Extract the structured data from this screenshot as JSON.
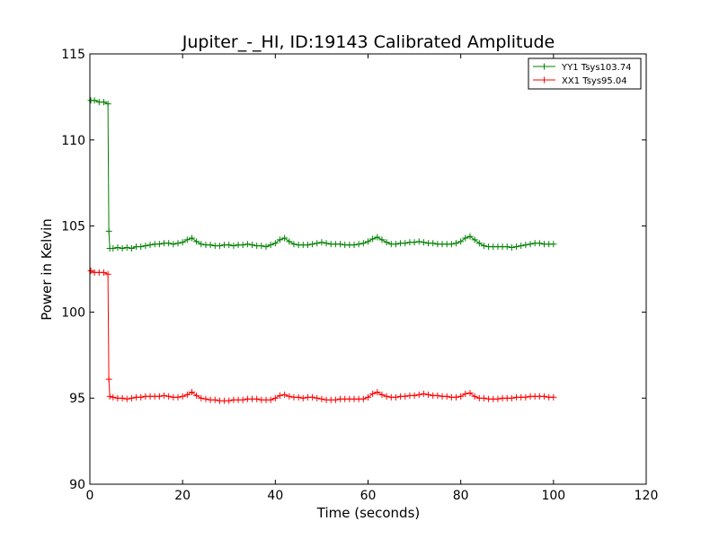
{
  "chart_data": {
    "type": "line",
    "title": "Jupiter_-_HI, ID:19143 Calibrated Amplitude",
    "xlabel": "Time (seconds)",
    "ylabel": "Power in Kelvin",
    "xlim": [
      0,
      120
    ],
    "ylim": [
      90,
      115
    ],
    "xticks": [
      0,
      20,
      40,
      60,
      80,
      100,
      120
    ],
    "yticks": [
      90,
      95,
      100,
      105,
      110,
      115
    ],
    "grid": false,
    "legend_position": "top-right",
    "marker": "plus",
    "series": [
      {
        "name": "YY1 Tsys103.74",
        "color": "#008000",
        "x": [
          0.2,
          1,
          2,
          3,
          3.9,
          4.1,
          4.3,
          5,
          6,
          7,
          8,
          9,
          10,
          11,
          12,
          13,
          14,
          15,
          16,
          17,
          18,
          19,
          20,
          21,
          22,
          23,
          24,
          25,
          26,
          27,
          28,
          29,
          30,
          31,
          32,
          33,
          34,
          35,
          36,
          37,
          38,
          39,
          40,
          41,
          42,
          43,
          44,
          45,
          46,
          47,
          48,
          49,
          50,
          51,
          52,
          53,
          54,
          55,
          56,
          57,
          58,
          59,
          60,
          61,
          62,
          63,
          64,
          65,
          66,
          67,
          68,
          69,
          70,
          71,
          72,
          73,
          74,
          75,
          76,
          77,
          78,
          79,
          80,
          81,
          82,
          83,
          84,
          85,
          86,
          87,
          88,
          89,
          90,
          91,
          92,
          93,
          94,
          95,
          96,
          97,
          98,
          99,
          100
        ],
        "values": [
          112.3,
          112.3,
          112.2,
          112.2,
          112.1,
          104.7,
          103.7,
          103.7,
          103.75,
          103.7,
          103.75,
          103.7,
          103.8,
          103.8,
          103.85,
          103.9,
          103.95,
          103.95,
          104.0,
          104.0,
          103.95,
          104.0,
          104.05,
          104.2,
          104.3,
          104.1,
          103.95,
          103.9,
          103.9,
          103.85,
          103.85,
          103.9,
          103.9,
          103.85,
          103.9,
          103.9,
          103.95,
          103.9,
          103.85,
          103.85,
          103.8,
          103.9,
          104.0,
          104.2,
          104.3,
          104.1,
          103.95,
          103.9,
          103.9,
          103.9,
          103.95,
          104.0,
          104.05,
          104.0,
          103.95,
          103.95,
          103.95,
          103.9,
          103.9,
          103.9,
          103.95,
          104.0,
          104.1,
          104.25,
          104.35,
          104.2,
          104.05,
          103.95,
          103.95,
          104.0,
          104.0,
          104.05,
          104.05,
          104.1,
          104.05,
          104.0,
          104.0,
          103.95,
          103.95,
          103.95,
          103.95,
          104.0,
          104.1,
          104.3,
          104.4,
          104.2,
          104.0,
          103.85,
          103.8,
          103.8,
          103.8,
          103.8,
          103.8,
          103.75,
          103.8,
          103.85,
          103.9,
          103.95,
          104.0,
          104.0,
          103.95,
          103.95,
          103.95
        ]
      },
      {
        "name": "XX1 Tsys95.04",
        "color": "#ff0000",
        "x": [
          0.2,
          1,
          2,
          3,
          3.9,
          4.1,
          4.3,
          5,
          6,
          7,
          8,
          9,
          10,
          11,
          12,
          13,
          14,
          15,
          16,
          17,
          18,
          19,
          20,
          21,
          22,
          23,
          24,
          25,
          26,
          27,
          28,
          29,
          30,
          31,
          32,
          33,
          34,
          35,
          36,
          37,
          38,
          39,
          40,
          41,
          42,
          43,
          44,
          45,
          46,
          47,
          48,
          49,
          50,
          51,
          52,
          53,
          54,
          55,
          56,
          57,
          58,
          59,
          60,
          61,
          62,
          63,
          64,
          65,
          66,
          67,
          68,
          69,
          70,
          71,
          72,
          73,
          74,
          75,
          76,
          77,
          78,
          79,
          80,
          81,
          82,
          83,
          84,
          85,
          86,
          87,
          88,
          89,
          90,
          91,
          92,
          93,
          94,
          95,
          96,
          97,
          98,
          99,
          100
        ],
        "values": [
          102.4,
          102.3,
          102.3,
          102.3,
          102.2,
          96.1,
          95.1,
          95.05,
          95.0,
          95.0,
          94.95,
          95.0,
          95.05,
          95.05,
          95.1,
          95.1,
          95.1,
          95.1,
          95.15,
          95.1,
          95.05,
          95.05,
          95.1,
          95.2,
          95.35,
          95.15,
          95.0,
          94.95,
          94.9,
          94.9,
          94.85,
          94.85,
          94.85,
          94.9,
          94.9,
          94.9,
          94.95,
          94.95,
          94.95,
          94.9,
          94.9,
          94.9,
          95.0,
          95.15,
          95.2,
          95.1,
          95.05,
          95.05,
          95.0,
          95.05,
          95.05,
          95.0,
          94.95,
          94.9,
          94.9,
          94.9,
          94.95,
          94.95,
          94.95,
          94.95,
          94.95,
          94.95,
          95.05,
          95.25,
          95.35,
          95.2,
          95.1,
          95.05,
          95.05,
          95.1,
          95.1,
          95.15,
          95.15,
          95.2,
          95.25,
          95.2,
          95.15,
          95.15,
          95.1,
          95.1,
          95.05,
          95.05,
          95.1,
          95.25,
          95.3,
          95.1,
          95.0,
          95.0,
          94.95,
          94.95,
          94.95,
          95.0,
          95.0,
          95.0,
          95.05,
          95.05,
          95.05,
          95.1,
          95.1,
          95.1,
          95.1,
          95.05,
          95.05
        ]
      }
    ]
  }
}
